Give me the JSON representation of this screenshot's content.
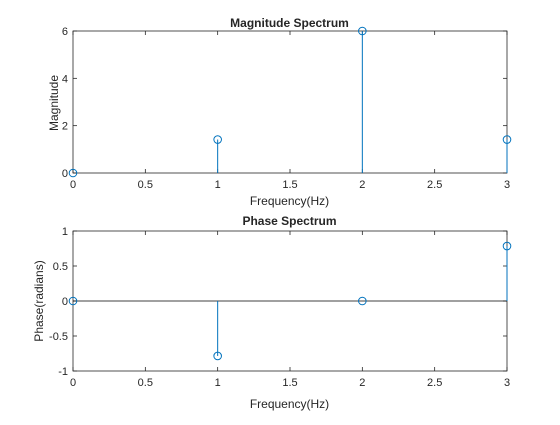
{
  "chart_data": [
    {
      "type": "stem",
      "title": "Magnitude Spectrum",
      "xlabel": "Frequency(Hz)",
      "ylabel": "Magnitude",
      "x": [
        0,
        1,
        2,
        3
      ],
      "values": [
        0,
        1.414,
        6,
        1.414
      ],
      "xlim": [
        0,
        3
      ],
      "ylim": [
        0,
        6
      ],
      "xticks": [
        "0",
        "0.5",
        "1",
        "1.5",
        "2",
        "2.5",
        "3"
      ],
      "yticks": [
        "0",
        "2",
        "4",
        "6"
      ],
      "grid": false,
      "baseline": false,
      "colors": {
        "stem": "#0072BD",
        "axis": "#262626"
      }
    },
    {
      "type": "stem",
      "title": "Phase Spectrum",
      "xlabel": "Frequency(Hz)",
      "ylabel": "Phase(radians)",
      "x": [
        0,
        1,
        2,
        3
      ],
      "values": [
        0,
        -0.785,
        0,
        0.785
      ],
      "xlim": [
        0,
        3
      ],
      "ylim": [
        -1,
        1
      ],
      "xticks": [
        "0",
        "0.5",
        "1",
        "1.5",
        "2",
        "2.5",
        "3"
      ],
      "yticks": [
        "-1",
        "-0.5",
        "0",
        "0.5",
        "1"
      ],
      "grid": false,
      "baseline": true,
      "colors": {
        "stem": "#0072BD",
        "axis": "#262626"
      }
    }
  ]
}
